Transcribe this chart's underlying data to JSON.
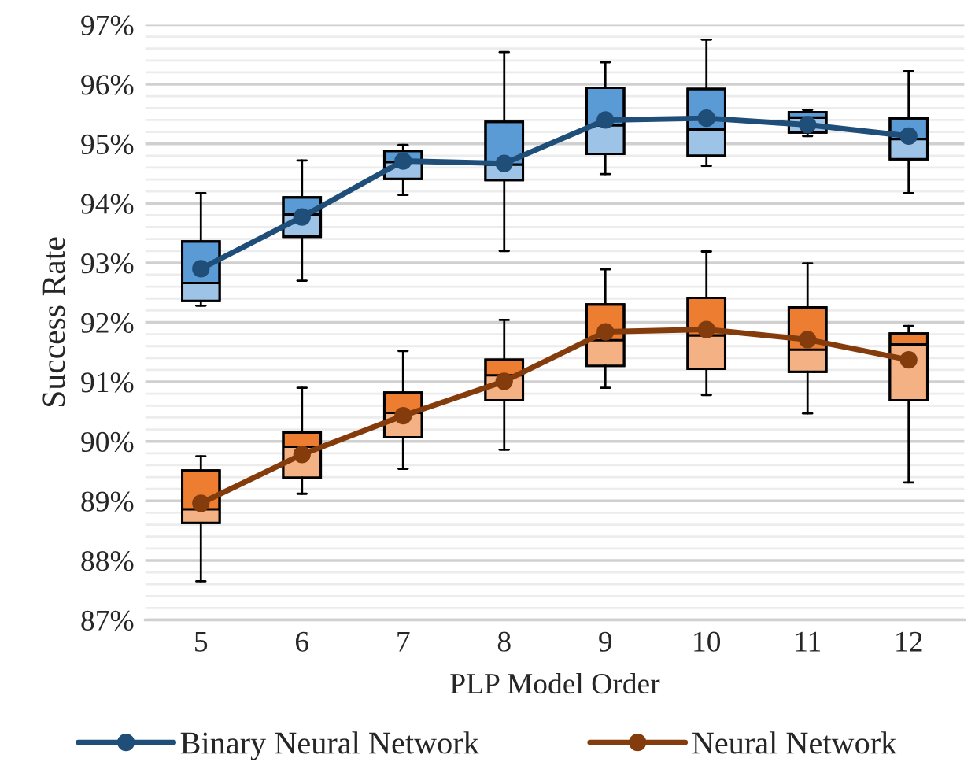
{
  "chart_data": {
    "type": "box",
    "xlabel": "PLP Model Order",
    "ylabel": "Success Rate",
    "categories": [
      "5",
      "6",
      "7",
      "8",
      "9",
      "10",
      "11",
      "12"
    ],
    "ylim": [
      87,
      97
    ],
    "yticks": [
      {
        "value": 87,
        "label": "87%"
      },
      {
        "value": 87.2,
        "label": null
      },
      {
        "value": 87.4,
        "label": null
      },
      {
        "value": 87.6,
        "label": null
      },
      {
        "value": 87.8,
        "label": null
      },
      {
        "value": 88,
        "label": "88%"
      },
      {
        "value": 88.2,
        "label": null
      },
      {
        "value": 88.4,
        "label": null
      },
      {
        "value": 88.6,
        "label": null
      },
      {
        "value": 88.8,
        "label": null
      },
      {
        "value": 89,
        "label": "89%"
      },
      {
        "value": 89.2,
        "label": null
      },
      {
        "value": 89.4,
        "label": null
      },
      {
        "value": 89.6,
        "label": null
      },
      {
        "value": 89.8,
        "label": null
      },
      {
        "value": 90,
        "label": "90%"
      },
      {
        "value": 90.2,
        "label": null
      },
      {
        "value": 90.4,
        "label": null
      },
      {
        "value": 90.6,
        "label": null
      },
      {
        "value": 90.8,
        "label": null
      },
      {
        "value": 91,
        "label": "91%"
      },
      {
        "value": 91.2,
        "label": null
      },
      {
        "value": 91.4,
        "label": null
      },
      {
        "value": 91.6,
        "label": null
      },
      {
        "value": 91.8,
        "label": null
      },
      {
        "value": 92,
        "label": "92%"
      },
      {
        "value": 92.2,
        "label": null
      },
      {
        "value": 92.4,
        "label": null
      },
      {
        "value": 92.6,
        "label": null
      },
      {
        "value": 92.8,
        "label": null
      },
      {
        "value": 93,
        "label": "93%"
      },
      {
        "value": 93.2,
        "label": null
      },
      {
        "value": 93.4,
        "label": null
      },
      {
        "value": 93.6,
        "label": null
      },
      {
        "value": 93.8,
        "label": null
      },
      {
        "value": 94,
        "label": "94%"
      },
      {
        "value": 94.2,
        "label": null
      },
      {
        "value": 94.4,
        "label": null
      },
      {
        "value": 94.6,
        "label": null
      },
      {
        "value": 94.8,
        "label": null
      },
      {
        "value": 95,
        "label": "95%"
      },
      {
        "value": 95.2,
        "label": null
      },
      {
        "value": 95.4,
        "label": null
      },
      {
        "value": 95.6,
        "label": null
      },
      {
        "value": 95.8,
        "label": null
      },
      {
        "value": 96,
        "label": "96%"
      },
      {
        "value": 96.2,
        "label": null
      },
      {
        "value": 96.4,
        "label": null
      },
      {
        "value": 96.6,
        "label": null
      },
      {
        "value": 96.8,
        "label": null
      },
      {
        "value": 97,
        "label": "97%"
      }
    ],
    "grid": "y",
    "legend": "bottom",
    "series": [
      {
        "color": "#5b9bd5",
        "boxes": [
          {
            "low": 92.28,
            "q1": 92.36,
            "median": 92.66,
            "q3": 93.36,
            "high": 94.17
          },
          {
            "low": 92.7,
            "q1": 93.44,
            "median": 93.81,
            "q3": 94.1,
            "high": 94.72
          },
          {
            "low": 94.14,
            "q1": 94.41,
            "median": 94.69,
            "q3": 94.88,
            "high": 94.98
          },
          {
            "low": 93.2,
            "q1": 94.39,
            "median": 94.65,
            "q3": 95.37,
            "high": 96.54
          },
          {
            "low": 94.49,
            "q1": 94.83,
            "median": 95.31,
            "q3": 95.94,
            "high": 96.37
          },
          {
            "low": 94.63,
            "q1": 94.8,
            "median": 95.24,
            "q3": 95.92,
            "high": 96.75
          },
          {
            "low": 95.13,
            "q1": 95.19,
            "median": 95.44,
            "q3": 95.53,
            "high": 95.57
          },
          {
            "low": 94.17,
            "q1": 94.74,
            "median": 95.08,
            "q3": 95.43,
            "high": 96.22
          }
        ]
      },
      {
        "color": "#ed7d31",
        "boxes": [
          {
            "low": 87.65,
            "q1": 88.63,
            "median": 88.86,
            "q3": 89.51,
            "high": 89.75
          },
          {
            "low": 89.12,
            "q1": 89.39,
            "median": 89.91,
            "q3": 90.15,
            "high": 90.9
          },
          {
            "low": 89.54,
            "q1": 90.07,
            "median": 90.48,
            "q3": 90.82,
            "high": 91.52
          },
          {
            "low": 89.86,
            "q1": 90.69,
            "median": 91.11,
            "q3": 91.37,
            "high": 92.04
          },
          {
            "low": 90.9,
            "q1": 91.27,
            "median": 91.7,
            "q3": 92.3,
            "high": 92.89
          },
          {
            "low": 90.78,
            "q1": 91.22,
            "median": 91.78,
            "q3": 92.41,
            "high": 93.19
          },
          {
            "low": 90.47,
            "q1": 91.17,
            "median": 91.54,
            "q3": 92.25,
            "high": 92.99
          },
          {
            "low": 89.31,
            "q1": 90.69,
            "median": 91.63,
            "q3": 91.81,
            "high": 91.94
          }
        ]
      },
      {
        "type": "line",
        "name": "Binary Neural Network",
        "color": "#1f4e79",
        "marker": "circle",
        "values": [
          92.9,
          93.77,
          94.71,
          94.67,
          95.4,
          95.43,
          95.32,
          95.13
        ]
      },
      {
        "type": "line",
        "name": "Neural Network",
        "color": "#843c0c",
        "marker": "circle",
        "values": [
          88.96,
          89.78,
          90.43,
          91.01,
          91.84,
          91.88,
          91.71,
          91.37
        ]
      }
    ]
  }
}
